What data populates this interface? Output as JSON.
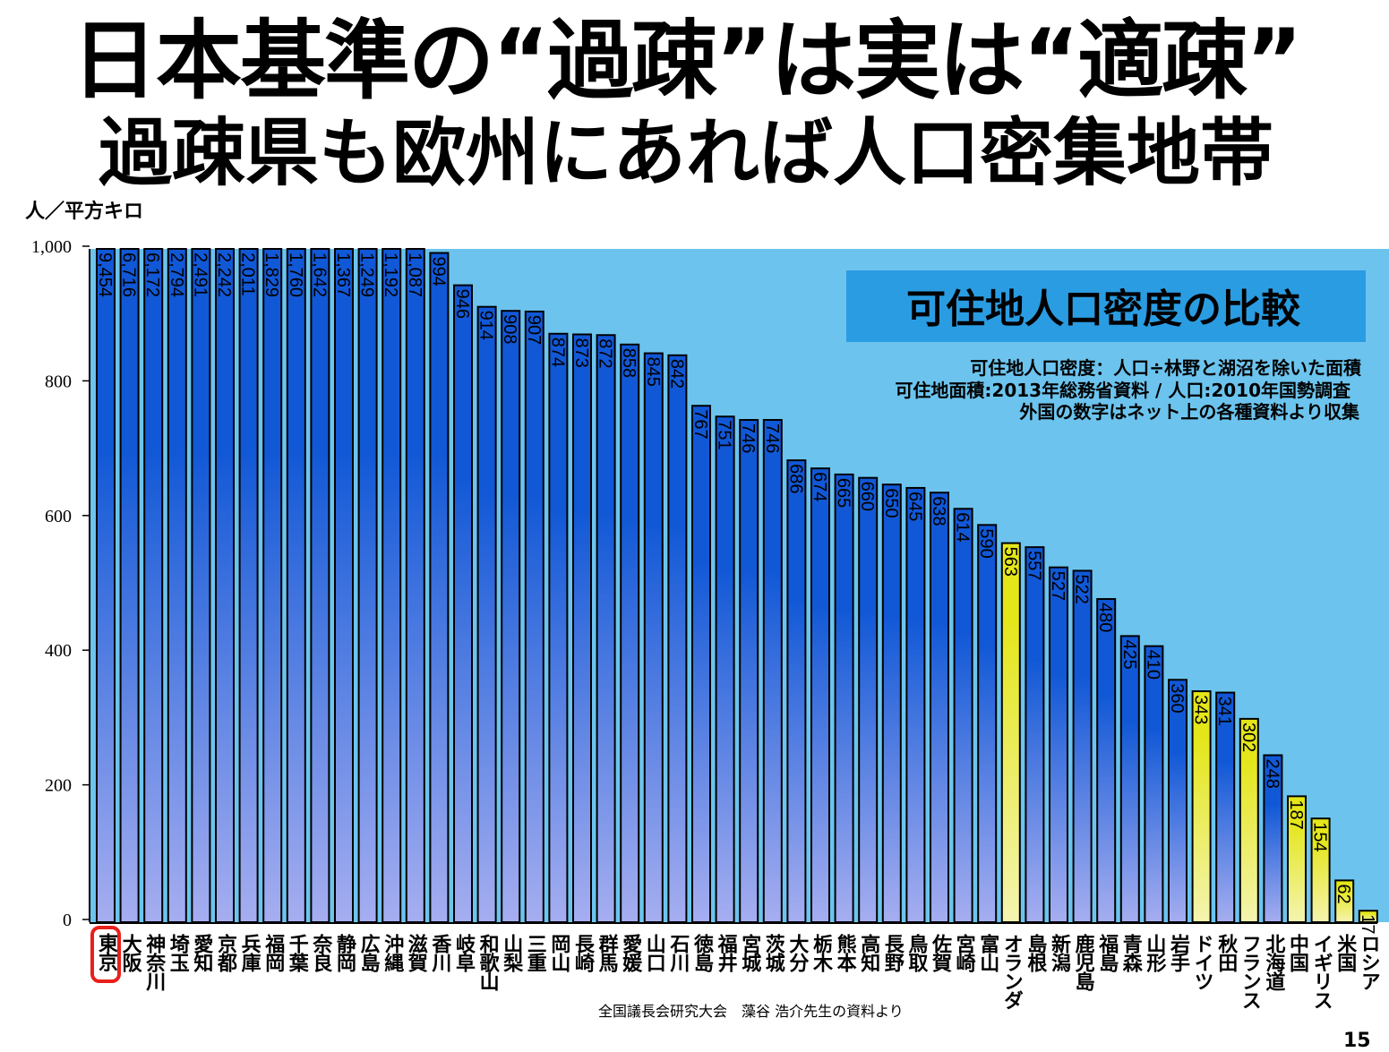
{
  "header": {
    "title": "日本基準の“過疎”は実は“適疎”",
    "subtitle": "過疎県も欧州にあれば人口密集地帯",
    "unit": "人／平方キロ"
  },
  "footer": {
    "source": "全国議長会研究大会　藻谷 浩介先生の資料より",
    "page_number": "15"
  },
  "colors": {
    "background": "#6cc4ee",
    "bar_japan_top": "#1158d6",
    "bar_japan_bottom": "#a6aef0",
    "bar_foreign_top": "#e4e61a",
    "bar_foreign_bottom": "#f4f4b0",
    "title_box": "#2a9ce2",
    "highlight": "#e8201c"
  },
  "chart_data": {
    "type": "bar",
    "title": "可住地人口密度の比較",
    "notes": [
      "可住地人口密度：人口÷林野と湖沼を除いた面積",
      "可住地面積:2013年総務省資料 / 人口:2010年国勢調査",
      "外国の数字はネット上の各種資料より収集"
    ],
    "ylabel": "人／平方キロ",
    "ylim": [
      0,
      1000
    ],
    "yticks": [
      0,
      200,
      400,
      600,
      800,
      1000
    ],
    "ytick_labels": [
      "0",
      "200",
      "400",
      "600",
      "800",
      "1,000"
    ],
    "highlighted_category": "東京",
    "categories": [
      "東京",
      "大阪",
      "神奈川",
      "埼玉",
      "愛知",
      "京都",
      "兵庫",
      "福岡",
      "千葉",
      "奈良",
      "静岡",
      "広島",
      "沖縄",
      "滋賀",
      "香川",
      "岐阜",
      "和歌山",
      "山梨",
      "三重",
      "岡山",
      "長崎",
      "群馬",
      "愛媛",
      "山口",
      "石川",
      "徳島",
      "福井",
      "宮城",
      "茨城",
      "大分",
      "栃木",
      "熊本",
      "高知",
      "長野",
      "鳥取",
      "佐賀",
      "宮崎",
      "富山",
      "オランダ",
      "島根",
      "新潟",
      "鹿児島",
      "福島",
      "青森",
      "山形",
      "岩手",
      "ドイツ",
      "秋田",
      "フランス",
      "北海道",
      "中国",
      "イギリス",
      "米国",
      "ロシア"
    ],
    "values": [
      9454,
      6716,
      6172,
      2794,
      2491,
      2242,
      2011,
      1829,
      1760,
      1642,
      1367,
      1249,
      1192,
      1087,
      994,
      946,
      914,
      908,
      907,
      874,
      873,
      872,
      858,
      845,
      842,
      767,
      751,
      746,
      746,
      686,
      674,
      665,
      660,
      650,
      645,
      638,
      614,
      590,
      563,
      557,
      527,
      522,
      480,
      425,
      410,
      360,
      343,
      341,
      302,
      248,
      187,
      154,
      62,
      17
    ],
    "value_labels": [
      "9,454",
      "6,716",
      "6,172",
      "2,794",
      "2,491",
      "2,242",
      "2,011",
      "1,829",
      "1,760",
      "1,642",
      "1,367",
      "1,249",
      "1,192",
      "1,087",
      "994",
      "946",
      "914",
      "908",
      "907",
      "874",
      "873",
      "872",
      "858",
      "845",
      "842",
      "767",
      "751",
      "746",
      "746",
      "686",
      "674",
      "665",
      "660",
      "650",
      "645",
      "638",
      "614",
      "590",
      "563",
      "557",
      "527",
      "522",
      "480",
      "425",
      "410",
      "360",
      "343",
      "341",
      "302",
      "248",
      "187",
      "154",
      "62",
      "17"
    ],
    "foreign": [
      false,
      false,
      false,
      false,
      false,
      false,
      false,
      false,
      false,
      false,
      false,
      false,
      false,
      false,
      false,
      false,
      false,
      false,
      false,
      false,
      false,
      false,
      false,
      false,
      false,
      false,
      false,
      false,
      false,
      false,
      false,
      false,
      false,
      false,
      false,
      false,
      false,
      false,
      true,
      false,
      false,
      false,
      false,
      false,
      false,
      false,
      true,
      false,
      true,
      false,
      true,
      true,
      true,
      true
    ]
  }
}
